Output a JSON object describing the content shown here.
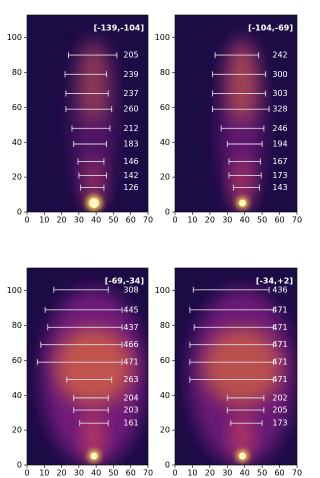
{
  "chart_data": [
    {
      "type": "range",
      "title": "[-139,-104]",
      "xlim": [
        0,
        70
      ],
      "ylim": [
        0,
        113
      ],
      "xticks": [
        0,
        10,
        20,
        30,
        40,
        50,
        60,
        70
      ],
      "yticks": [
        0,
        20,
        40,
        60,
        80,
        100
      ],
      "y": [
        90,
        79,
        68,
        59,
        48,
        39,
        29,
        21,
        14
      ],
      "x_left": [
        24,
        22,
        22.5,
        22.5,
        26,
        27,
        29.5,
        30,
        31
      ],
      "x_right": [
        52,
        46,
        47,
        49,
        48,
        46,
        44.5,
        46,
        44.5
      ],
      "values": [
        205,
        239,
        237,
        260,
        212,
        183,
        146,
        142,
        126
      ]
    },
    {
      "type": "range",
      "title": "[-104,-69]",
      "xlim": [
        0,
        70
      ],
      "ylim": [
        0,
        113
      ],
      "xticks": [
        0,
        10,
        20,
        30,
        40,
        50,
        60,
        70
      ],
      "yticks": [
        0,
        20,
        40,
        60,
        80,
        100
      ],
      "y": [
        90,
        79,
        68,
        59,
        48,
        39,
        29,
        21,
        14
      ],
      "x_left": [
        23,
        21.5,
        21.5,
        21.5,
        26.5,
        30,
        31,
        31,
        33.5
      ],
      "x_right": [
        48,
        52,
        52,
        54,
        51,
        50,
        49,
        49.5,
        48.5
      ],
      "values": [
        242,
        300,
        303,
        328,
        246,
        194,
        167,
        173,
        143
      ]
    },
    {
      "type": "range",
      "title": "[-69,-34]",
      "xlim": [
        0,
        70
      ],
      "ylim": [
        0,
        113
      ],
      "xticks": [
        0,
        10,
        20,
        30,
        40,
        50,
        60,
        70
      ],
      "yticks": [
        0,
        20,
        40,
        60,
        80,
        100
      ],
      "y": [
        100.5,
        89,
        79,
        69,
        59,
        49,
        38.5,
        31.5,
        24
      ],
      "x_left": [
        15.5,
        10.5,
        12,
        8,
        6,
        23,
        27,
        27,
        30.5
      ],
      "x_right": [
        47,
        55,
        55,
        55,
        55,
        49,
        47,
        47,
        47
      ],
      "values": [
        308,
        445,
        437,
        466,
        471,
        263,
        204,
        203,
        161
      ]
    },
    {
      "type": "range",
      "title": "[-34,+2]",
      "xlim": [
        0,
        70
      ],
      "ylim": [
        0,
        113
      ],
      "xticks": [
        0,
        10,
        20,
        30,
        40,
        50,
        60,
        70
      ],
      "yticks": [
        0,
        20,
        40,
        60,
        80,
        100
      ],
      "y": [
        100.5,
        89,
        79,
        69,
        59,
        49,
        38.5,
        31.5,
        24
      ],
      "x_left": [
        10.5,
        8.5,
        11,
        8.5,
        8.5,
        8.5,
        30,
        30,
        32
      ],
      "x_right": [
        54,
        56.5,
        56.5,
        56.5,
        56.5,
        56.5,
        51,
        51,
        50
      ],
      "values": [
        436,
        471,
        471,
        471,
        471,
        471,
        202,
        205,
        173
      ]
    }
  ]
}
